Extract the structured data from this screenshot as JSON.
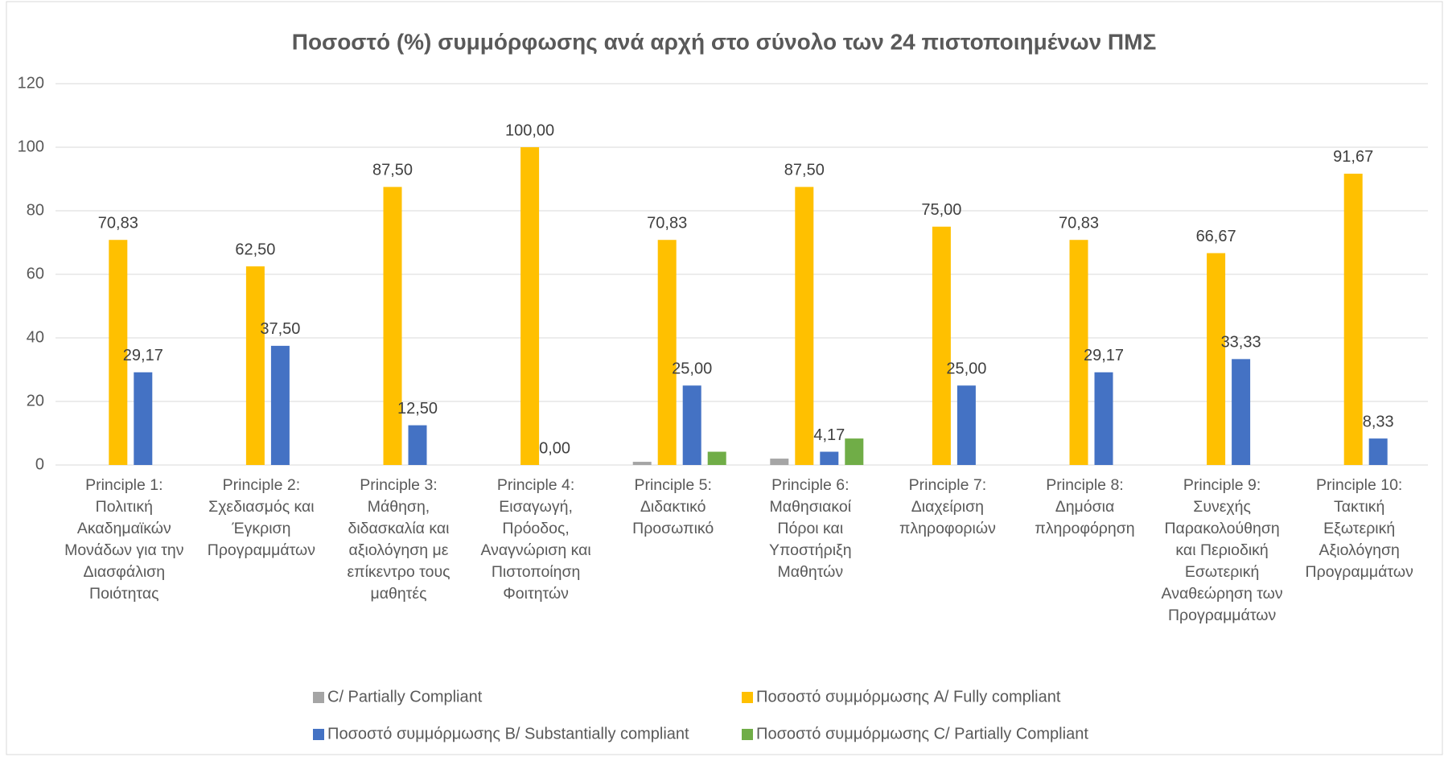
{
  "chart_data": {
    "type": "bar",
    "title": "Ποσοστό (%) συμμόρφωσης ανά αρχή στο σύνολο των 24 πιστοποιημένων ΠΜΣ",
    "categories": [
      "Principle 1: Πολιτική Ακαδημαϊκών Μονάδων για την Διασφάλιση Ποιότητας",
      "Principle 2: Σχεδιασμός και Έγκριση Προγραμμάτων",
      "Principle 3: Μάθηση, διδασκαλία και αξιολόγηση με επίκεντρο τους μαθητές",
      "Principle 4: Εισαγωγή, Πρόοδος, Αναγνώριση και Πιστοποίηση Φοιτητών",
      "Principle 5: Διδακτικό Προσωπικό",
      "Principle 6: Μαθησιακοί Πόροι και Υποστήριξη Μαθητών",
      "Principle 7: Διαχείριση πληροφοριών",
      "Principle 8: Δημόσια πληροφόρηση",
      "Principle 9: Συνεχής Παρακολούθηση και Περιοδική Εσωτερική Αναθεώρηση των Προγραμμάτων",
      "Principle 10: Τακτική Εξωτερική Αξιολόγηση Προγραμμάτων"
    ],
    "series": [
      {
        "name": "C/ Partially Compliant",
        "color": "#a5a5a5",
        "values": [
          0,
          0,
          0,
          0,
          1,
          2,
          0,
          0,
          0,
          0
        ]
      },
      {
        "name": "Ποσοστό συμμόρμωσης A/ Fully compliant",
        "color": "#ffc000",
        "values": [
          70.83,
          62.5,
          87.5,
          100,
          70.83,
          87.5,
          75,
          70.83,
          66.67,
          91.67
        ],
        "value_labels": [
          "70,83",
          "62,50",
          "87,50",
          "100,00",
          "70,83",
          "87,50",
          "75,00",
          "70,83",
          "66,67",
          "91,67"
        ]
      },
      {
        "name": "Ποσοστό συμμόρμωσης B/ Substantially compliant",
        "color": "#4472c4",
        "values": [
          29.17,
          37.5,
          12.5,
          0,
          25,
          4.17,
          25,
          29.17,
          33.33,
          8.33
        ],
        "value_labels": [
          "29,17",
          "37,50",
          "12,50",
          "0,00",
          "25,00",
          "4,17",
          "25,00",
          "29,17",
          "33,33",
          "8,33"
        ]
      },
      {
        "name": "Ποσοστό συμμόρμωσης C/ Partially Compliant",
        "color": "#70ad47",
        "values": [
          0,
          0,
          0,
          0,
          4.17,
          8.33,
          0,
          0,
          0,
          0
        ]
      }
    ],
    "ylim": [
      0,
      120
    ],
    "yticks": [
      0,
      20,
      40,
      60,
      80,
      100,
      120
    ],
    "grid": true,
    "legend": "bottom"
  }
}
